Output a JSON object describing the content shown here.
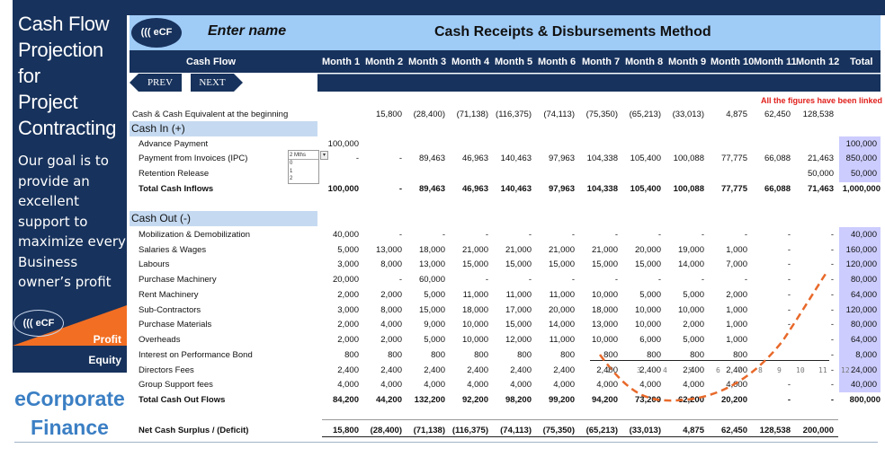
{
  "sidebar": {
    "title_lines": [
      "Cash Flow",
      "Projection for",
      "Project",
      "Contracting"
    ],
    "goal_lines": [
      "Our goal is to",
      "provide an",
      "excellent",
      "support to",
      "maximize every",
      "Business",
      "owner’s profit"
    ],
    "logo": {
      "text": "((( eCF",
      "profit": "Profit",
      "equity": "Equity"
    },
    "brand_lines": [
      "eCorporate",
      "Finance"
    ]
  },
  "header": {
    "logo_text": "((( eCF",
    "name_placeholder": "Enter name",
    "method_title": "Cash Receipts & Disbursements Method"
  },
  "colors": {
    "navy": "#17325c",
    "light_blue": "#9fcbf7",
    "section_blue": "#c5daf1",
    "total_shade": "#ccccff",
    "orange": "#f26e22",
    "note_red": "#e0201c",
    "brand_blue": "#3b7fc4"
  },
  "table": {
    "first_col_header": "Cash Flow",
    "columns": [
      "Month 1",
      "Month 2",
      "Month 3",
      "Month 4",
      "Month 5",
      "Month 6",
      "Month 7",
      "Month 8",
      "Month 9",
      "Month 10",
      "Month 11",
      "Month 12",
      "Total"
    ],
    "nav": {
      "prev": "PREV",
      "next": "NEXT"
    },
    "note": "All the figures have been linked",
    "opening": {
      "label": "Cash & Cash Equivalent at the beginning",
      "values": [
        "",
        "15,800",
        "(28,400)",
        "(71,138)",
        "(116,375)",
        "(74,113)",
        "(75,350)",
        "(65,213)",
        "(33,013)",
        "4,875",
        "62,450",
        "128,538",
        ""
      ]
    },
    "cash_in": {
      "title": "Cash In (+)",
      "rows": [
        {
          "label": "Advance Payment",
          "values": [
            "100,000",
            "",
            "",
            "",
            "",
            "",
            "",
            "",
            "",
            "",
            "",
            "",
            "100,000"
          ]
        },
        {
          "label": "Payment from Invoices (IPC)",
          "values": [
            "-",
            "-",
            "89,463",
            "46,963",
            "140,463",
            "97,963",
            "104,338",
            "105,400",
            "100,088",
            "77,775",
            "66,088",
            "21,463",
            "850,000"
          ]
        },
        {
          "label": "Retention Release",
          "values": [
            "",
            "",
            "",
            "",
            "",
            "",
            "",
            "",
            "",
            "",
            "",
            "50,000",
            "50,000"
          ]
        }
      ],
      "total": {
        "label": "Total Cash Inflows",
        "values": [
          "100,000",
          "-",
          "89,463",
          "46,963",
          "140,463",
          "97,963",
          "104,338",
          "105,400",
          "100,088",
          "77,775",
          "66,088",
          "71,463",
          "1,000,000"
        ]
      },
      "dropdown": {
        "selected": "2 Mths",
        "options": [
          "0",
          "1",
          "2"
        ]
      }
    },
    "cash_out": {
      "title": "Cash Out (-)",
      "rows": [
        {
          "label": "Mobilization & Demobilization",
          "values": [
            "40,000",
            "-",
            "-",
            "-",
            "-",
            "-",
            "-",
            "-",
            "-",
            "-",
            "-",
            "-",
            "40,000"
          ]
        },
        {
          "label": "Salaries & Wages",
          "values": [
            "5,000",
            "13,000",
            "18,000",
            "21,000",
            "21,000",
            "21,000",
            "21,000",
            "20,000",
            "19,000",
            "1,000",
            "-",
            "-",
            "160,000"
          ]
        },
        {
          "label": "Labours",
          "values": [
            "3,000",
            "8,000",
            "13,000",
            "15,000",
            "15,000",
            "15,000",
            "15,000",
            "15,000",
            "14,000",
            "7,000",
            "-",
            "-",
            "120,000"
          ]
        },
        {
          "label": "Purchase Machinery",
          "values": [
            "20,000",
            "-",
            "60,000",
            "-",
            "-",
            "-",
            "-",
            "-",
            "-",
            "-",
            "-",
            "-",
            "80,000"
          ]
        },
        {
          "label": "Rent Machinery",
          "values": [
            "2,000",
            "2,000",
            "5,000",
            "11,000",
            "11,000",
            "11,000",
            "10,000",
            "5,000",
            "5,000",
            "2,000",
            "-",
            "-",
            "64,000"
          ]
        },
        {
          "label": "Sub-Contractors",
          "values": [
            "3,000",
            "8,000",
            "15,000",
            "18,000",
            "17,000",
            "20,000",
            "18,000",
            "10,000",
            "10,000",
            "1,000",
            "-",
            "-",
            "120,000"
          ]
        },
        {
          "label": "Purchase Materials",
          "values": [
            "2,000",
            "4,000",
            "9,000",
            "10,000",
            "15,000",
            "14,000",
            "13,000",
            "10,000",
            "2,000",
            "1,000",
            "-",
            "-",
            "80,000"
          ]
        },
        {
          "label": "Overheads",
          "values": [
            "2,000",
            "2,000",
            "5,000",
            "10,000",
            "12,000",
            "11,000",
            "10,000",
            "6,000",
            "5,000",
            "1,000",
            "",
            "-",
            "64,000"
          ]
        },
        {
          "label": "Interest on Performance Bond",
          "values": [
            "800",
            "800",
            "800",
            "800",
            "800",
            "800",
            "800",
            "800",
            "800",
            "800",
            "",
            "-",
            "8,000"
          ]
        },
        {
          "label": "Directors Fees",
          "values": [
            "2,400",
            "2,400",
            "2,400",
            "2,400",
            "2,400",
            "2,400",
            "2,400",
            "2,400",
            "2,400",
            "2,400",
            "",
            "-",
            "24,000"
          ]
        },
        {
          "label": "Group Support fees",
          "values": [
            "4,000",
            "4,000",
            "4,000",
            "4,000",
            "4,000",
            "4,000",
            "4,000",
            "4,000",
            "4,000",
            "4,000",
            "-",
            "-",
            "40,000"
          ]
        }
      ],
      "total": {
        "label": "Total Cash Out Flows",
        "values": [
          "84,200",
          "44,200",
          "132,200",
          "92,200",
          "98,200",
          "99,200",
          "94,200",
          "73,200",
          "62,200",
          "20,200",
          "-",
          "-",
          "800,000"
        ]
      }
    },
    "net": {
      "label": "Net Cash Surplus / (Deficit)",
      "values": [
        "15,800",
        "(28,400)",
        "(71,138)",
        "(116,375)",
        "(74,113)",
        "(75,350)",
        "(65,213)",
        "(33,013)",
        "4,875",
        "62,450",
        "128,538",
        "200,000",
        ""
      ]
    }
  },
  "overlay": {
    "axis_numbers": [
      "2",
      "3",
      "4",
      "5",
      "6",
      "7",
      "8",
      "9",
      "10",
      "11",
      "12"
    ]
  }
}
